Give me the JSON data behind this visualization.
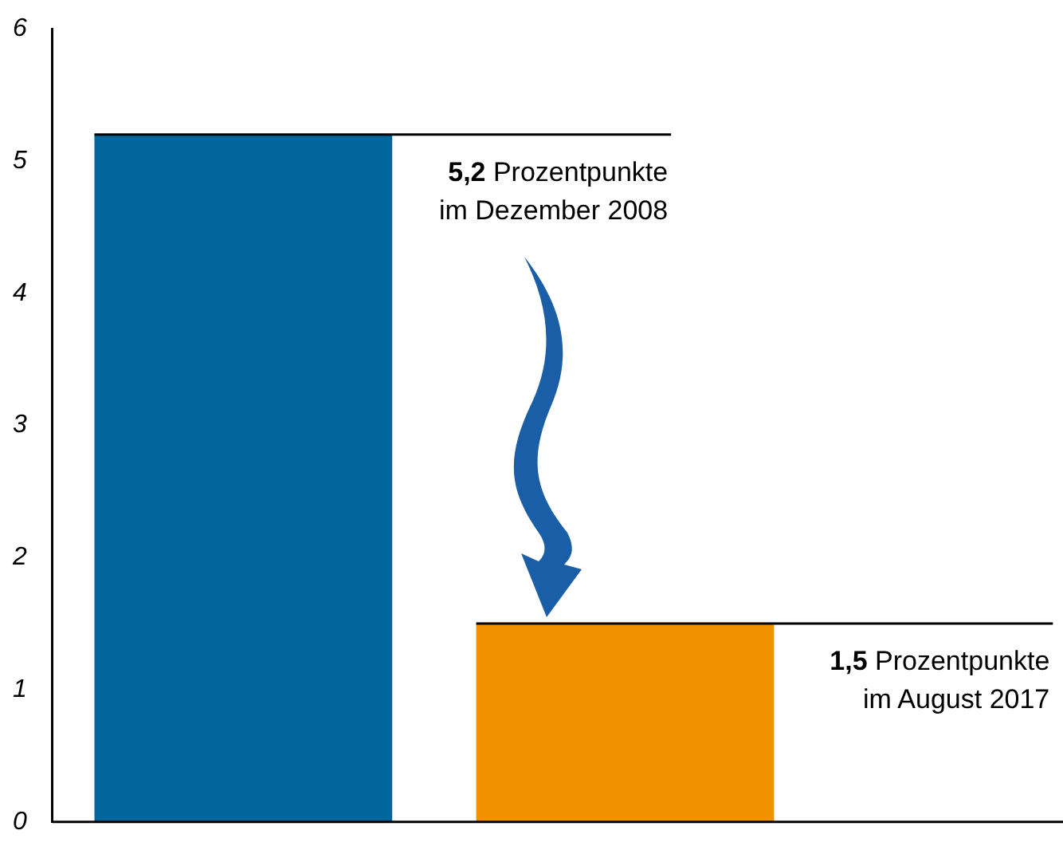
{
  "chart_data": {
    "type": "bar",
    "categories": [
      null,
      null
    ],
    "values": [
      5.2,
      1.5
    ],
    "colors": [
      "#00669c",
      "#f39200"
    ],
    "ylim": [
      0,
      6
    ],
    "yticks": [
      0,
      1,
      2,
      3,
      4,
      5,
      6
    ],
    "grid": false,
    "legend": false,
    "annotations": [
      "5,2 Prozentpunkte im Dezember 2008",
      "1,5 Prozentpunkte im August 2017"
    ]
  }
}
